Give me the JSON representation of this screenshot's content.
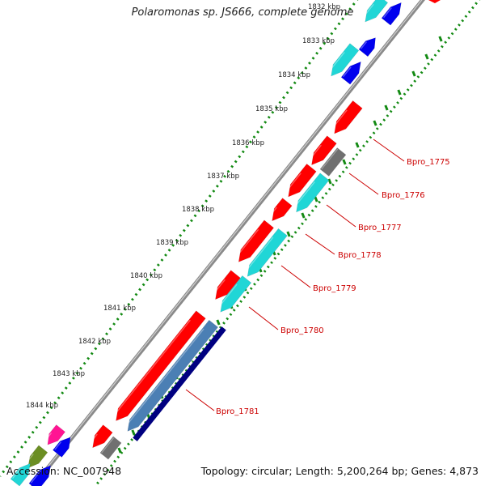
{
  "title": "Polaromonas sp. JS666, complete genome",
  "accession": "Accession: NC_007948",
  "summary": "Topology: circular; Length: 5,200,264 bp; Genes: 4,873",
  "ticks": [
    "1832 kbp",
    "1833 kbp",
    "1834 kbp",
    "1835 kbp",
    "1836 kbp",
    "1837 kbp",
    "1838 kbp",
    "1839 kbp",
    "1840 kbp",
    "1841 kbp",
    "1842 kbp",
    "1843 kbp",
    "1844 kbp"
  ],
  "gene_labels": [
    "Bpro_1775",
    "Bpro_1776",
    "Bpro_1777",
    "Bpro_1778",
    "Bpro_1779",
    "Bpro_1780",
    "Bpro_1781"
  ],
  "colors": {
    "red": "#ff0000",
    "cyan": "#20d6d6",
    "blue": "#0000ee",
    "navy": "#000080",
    "steel": "#4b7fb4",
    "gray": "#707070",
    "magenta": "#ff1493",
    "olive": "#6b8e23",
    "backbone": "#8c8c8c",
    "dots": "#138a13",
    "label": "#cc0000"
  }
}
